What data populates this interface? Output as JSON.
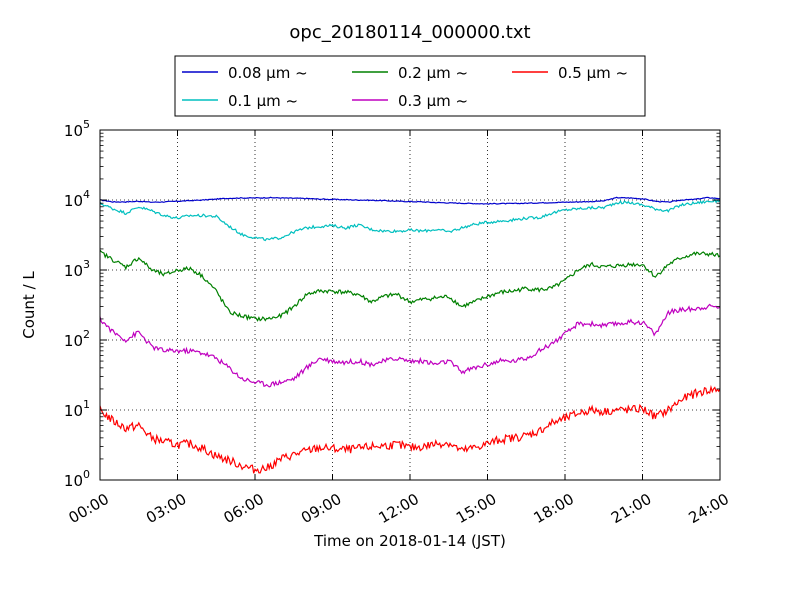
{
  "chart_data": {
    "type": "line",
    "title": "opc_20180114_000000.txt",
    "xlabel": "Time on 2018-01-14 (JST)",
    "ylabel": "Count / L",
    "yscale": "log",
    "xlim": [
      0,
      24
    ],
    "ylim": [
      1,
      100000
    ],
    "grid": true,
    "legend": "top-center",
    "x_ticks": [
      "00:00",
      "03:00",
      "06:00",
      "09:00",
      "12:00",
      "15:00",
      "18:00",
      "21:00",
      "24:00"
    ],
    "y_ticks": [
      {
        "base": "10",
        "exp": "0"
      },
      {
        "base": "10",
        "exp": "1"
      },
      {
        "base": "10",
        "exp": "2"
      },
      {
        "base": "10",
        "exp": "3"
      },
      {
        "base": "10",
        "exp": "4"
      },
      {
        "base": "10",
        "exp": "5"
      }
    ],
    "x_hours": [
      0,
      0.5,
      1,
      1.5,
      2,
      2.5,
      3,
      3.5,
      4,
      4.5,
      5,
      5.5,
      6,
      6.5,
      7,
      7.5,
      8,
      8.5,
      9,
      9.5,
      10,
      10.5,
      11,
      11.5,
      12,
      12.5,
      13,
      13.5,
      14,
      14.5,
      15,
      15.5,
      16,
      16.5,
      17,
      17.5,
      18,
      18.5,
      19,
      19.5,
      20,
      20.5,
      21,
      21.5,
      22,
      22.5,
      23,
      23.5,
      24
    ],
    "series": [
      {
        "name": "0.08 μm ~",
        "color": "#0000cc",
        "values": [
          10000,
          9400,
          9400,
          9600,
          9300,
          9400,
          9600,
          9800,
          10000,
          10300,
          10600,
          10700,
          10700,
          10800,
          10700,
          10600,
          10500,
          10300,
          10200,
          10100,
          10000,
          9900,
          9800,
          9600,
          9500,
          9400,
          9200,
          9100,
          9000,
          8900,
          8800,
          8900,
          8900,
          9000,
          9100,
          9200,
          9300,
          9400,
          9500,
          9700,
          10800,
          10700,
          10400,
          9600,
          9300,
          10000,
          10200,
          10800,
          10500
        ]
      },
      {
        "name": "0.1 μm ~",
        "color": "#00bfbf",
        "values": [
          9000,
          7500,
          6500,
          8000,
          7000,
          6000,
          5500,
          6000,
          6000,
          5800,
          4200,
          3200,
          2900,
          2700,
          2900,
          3500,
          4000,
          4200,
          4300,
          4000,
          4400,
          3800,
          3600,
          3600,
          3700,
          3600,
          3800,
          3500,
          4000,
          4500,
          4800,
          5000,
          5200,
          5500,
          5600,
          6500,
          7200,
          7500,
          7700,
          7800,
          9200,
          9200,
          8500,
          7500,
          7000,
          8500,
          9000,
          9500,
          9800
        ]
      },
      {
        "name": "0.2 μm ~",
        "color": "#008000",
        "values": [
          1800,
          1400,
          1100,
          1500,
          1000,
          850,
          1000,
          1050,
          800,
          500,
          250,
          220,
          200,
          200,
          220,
          300,
          450,
          500,
          500,
          480,
          450,
          350,
          420,
          450,
          350,
          380,
          400,
          420,
          300,
          350,
          420,
          480,
          500,
          550,
          520,
          550,
          700,
          1000,
          1200,
          1100,
          1150,
          1200,
          1200,
          800,
          1200,
          1500,
          1700,
          1700,
          1600
        ]
      },
      {
        "name": "0.3 μm ~",
        "color": "#bf00bf",
        "values": [
          200,
          130,
          100,
          130,
          80,
          70,
          70,
          70,
          65,
          55,
          40,
          28,
          25,
          23,
          25,
          28,
          40,
          55,
          50,
          48,
          50,
          45,
          50,
          55,
          50,
          50,
          45,
          50,
          35,
          40,
          45,
          50,
          50,
          55,
          70,
          90,
          120,
          170,
          170,
          160,
          170,
          180,
          180,
          120,
          250,
          270,
          280,
          300,
          300
        ]
      },
      {
        "name": "0.5 μm ~",
        "color": "#ff0000",
        "values": [
          10,
          7,
          5.5,
          6,
          4,
          3.5,
          3.2,
          3.3,
          2.8,
          2.2,
          1.9,
          1.6,
          1.4,
          1.5,
          2,
          2.3,
          2.6,
          2.9,
          2.8,
          2.7,
          2.8,
          3,
          3.1,
          3.2,
          2.9,
          3,
          3.3,
          3.4,
          2.6,
          2.9,
          3.3,
          3.8,
          4,
          4.3,
          5,
          6.5,
          7.5,
          9,
          10,
          9.5,
          10,
          10,
          10.5,
          8,
          10,
          14,
          17,
          19,
          20
        ]
      }
    ]
  }
}
